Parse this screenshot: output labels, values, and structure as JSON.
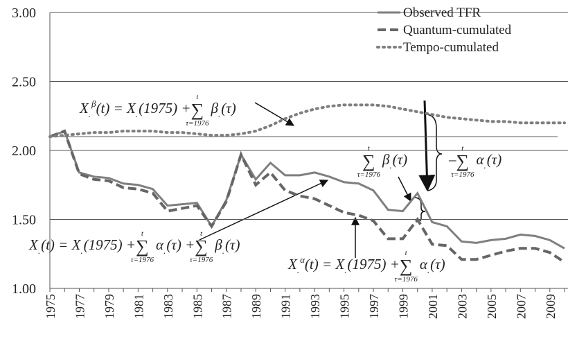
{
  "chart_data": {
    "type": "line",
    "categories": [
      "1975",
      null,
      "1977",
      null,
      "1979",
      null,
      "1981",
      null,
      "1983",
      null,
      "1985",
      null,
      "1987",
      null,
      "1989",
      null,
      "1991",
      null,
      "1993",
      null,
      "1995",
      null,
      "1997",
      null,
      "1999",
      null,
      "2001",
      null,
      "2003",
      null,
      "2005",
      null,
      "2007",
      null,
      "2009",
      null
    ],
    "series": [
      {
        "name": "Observed TFR",
        "color": "#7f7f7f",
        "style": "solid",
        "values": [
          2.1,
          2.14,
          1.84,
          1.81,
          1.8,
          1.76,
          1.75,
          1.72,
          1.6,
          1.61,
          1.62,
          1.45,
          1.64,
          1.97,
          1.79,
          1.91,
          1.82,
          1.82,
          1.84,
          1.81,
          1.77,
          1.76,
          1.71,
          1.57,
          1.56,
          1.69,
          1.48,
          1.45,
          1.34,
          1.33,
          1.35,
          1.36,
          1.39,
          1.38,
          1.35,
          1.29
        ]
      },
      {
        "name": "Quantum-cumulated",
        "color": "#666666",
        "style": "dashed",
        "values": [
          2.1,
          2.14,
          1.83,
          1.79,
          1.78,
          1.73,
          1.72,
          1.69,
          1.56,
          1.58,
          1.6,
          1.45,
          1.63,
          1.97,
          1.75,
          1.84,
          1.71,
          1.67,
          1.65,
          1.6,
          1.55,
          1.53,
          1.49,
          1.36,
          1.36,
          1.5,
          1.32,
          1.31,
          1.21,
          1.21,
          1.24,
          1.27,
          1.29,
          1.29,
          1.26,
          1.19
        ]
      },
      {
        "name": "Tempo-cumulated",
        "color": "#7f7f7f",
        "style": "dotted",
        "values": [
          2.1,
          2.11,
          2.12,
          2.13,
          2.13,
          2.14,
          2.14,
          2.14,
          2.13,
          2.13,
          2.12,
          2.11,
          2.11,
          2.12,
          2.14,
          2.18,
          2.23,
          2.27,
          2.3,
          2.32,
          2.33,
          2.33,
          2.33,
          2.32,
          2.3,
          2.28,
          2.26,
          2.24,
          2.23,
          2.22,
          2.21,
          2.21,
          2.2,
          2.2,
          2.2,
          2.2
        ]
      }
    ],
    "reference_line": 2.1,
    "ylim": [
      1.0,
      3.0
    ],
    "yticks": [
      {
        "value": 1.0,
        "label": "1.00"
      },
      {
        "value": 1.5,
        "label": "1.50"
      },
      {
        "value": 2.0,
        "label": "2.00"
      },
      {
        "value": 2.5,
        "label": "2.50"
      },
      {
        "value": 3.0,
        "label": "3.00"
      }
    ],
    "grid": true,
    "legend": "top-right",
    "annotations": [
      [
        {
          "t": "X"
        },
        {
          "t": ".",
          "s": "sub"
        },
        {
          "t": "β",
          "s": "sup"
        },
        {
          "t": "(t) = X"
        },
        {
          "t": ".",
          "s": "sub"
        },
        {
          "t": "(1975) + "
        },
        {
          "sum": "∑",
          "top": "t",
          "bottom": "τ=1976"
        },
        {
          "t": "β"
        },
        {
          "t": ".",
          "s": "sub"
        },
        {
          "t": "(τ)"
        }
      ],
      [
        {
          "t": "X"
        },
        {
          "t": ".",
          "s": "sub"
        },
        {
          "t": "(t) = X"
        },
        {
          "t": ".",
          "s": "sub"
        },
        {
          "t": "(1975) + "
        },
        {
          "sum": "∑",
          "top": "t",
          "bottom": "τ=1976"
        },
        {
          "t": "α"
        },
        {
          "t": ".",
          "s": "sub"
        },
        {
          "t": "(τ) + "
        },
        {
          "sum": "∑",
          "top": "t",
          "bottom": "τ=1976"
        },
        {
          "t": "β"
        },
        {
          "t": ".",
          "s": "sub"
        },
        {
          "t": "(τ)"
        }
      ],
      [
        {
          "t": "X"
        },
        {
          "t": ".",
          "s": "sub"
        },
        {
          "t": "α",
          "s": "sup"
        },
        {
          "t": "(t) = X"
        },
        {
          "t": ".",
          "s": "sub"
        },
        {
          "t": "(1975) + "
        },
        {
          "sum": "∑",
          "top": "t",
          "bottom": "τ=1976"
        },
        {
          "t": "α"
        },
        {
          "t": ".",
          "s": "sub"
        },
        {
          "t": "(τ)"
        }
      ],
      [
        {
          "sum": "∑",
          "top": "t",
          "bottom": "τ=1976"
        },
        {
          "t": "β"
        },
        {
          "t": ".",
          "s": "sub"
        },
        {
          "t": "(τ)"
        }
      ],
      [
        {
          "t": "– "
        },
        {
          "sum": "∑",
          "top": "t",
          "bottom": "τ=1976"
        },
        {
          "t": "α"
        },
        {
          "t": ".",
          "s": "sub"
        },
        {
          "t": "(τ)"
        }
      ]
    ]
  }
}
